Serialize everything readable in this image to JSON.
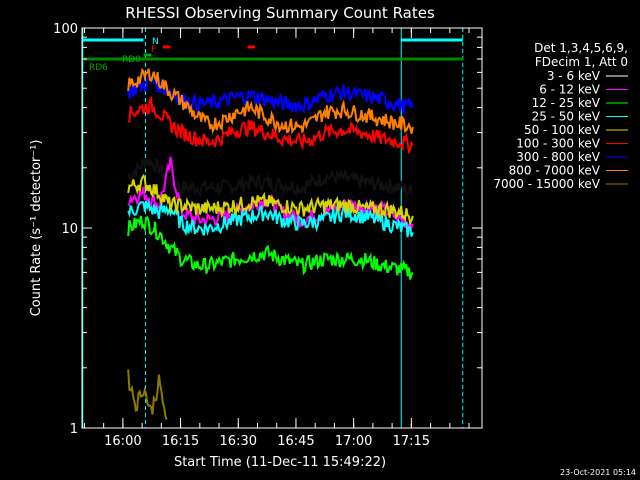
{
  "chart_data": {
    "type": "line",
    "title": "RHESSI Observing Summary Count Rates",
    "xlabel": "Start Time (11-Dec-11 15:49:22)",
    "ylabel": "Count Rate (s⁻¹ detector⁻¹)",
    "yscale": "log",
    "ylim": [
      1,
      100
    ],
    "xlim_minutes": [
      0,
      104
    ],
    "x_tick_labels": [
      "16:00",
      "16:15",
      "16:30",
      "16:45",
      "17:00",
      "17:15"
    ],
    "x_tick_minutes": [
      10.63,
      25.63,
      40.63,
      55.63,
      70.63,
      85.63
    ],
    "y_tick_labels": [
      "1",
      "10",
      "100"
    ],
    "y_ticks": [
      1,
      10,
      100
    ],
    "legend_header": [
      "Det 1,3,4,5,6,9,",
      "FDecim 1, Att 0"
    ],
    "timestamp": "23-Oct-2021 05:14",
    "flag_labels": {
      "n": "N",
      "f": "F",
      "rd0": "RD0",
      "rd6": "RD6"
    },
    "series": [
      {
        "name": "3 - 6 keV",
        "color": "#000000",
        "values": [
          [
            12,
            18
          ],
          [
            17,
            22
          ],
          [
            20,
            20
          ],
          [
            23,
            17
          ],
          [
            26,
            16
          ],
          [
            31,
            16
          ],
          [
            38,
            16
          ],
          [
            44,
            17
          ],
          [
            47,
            17
          ],
          [
            57,
            16
          ],
          [
            63,
            18
          ],
          [
            66,
            18
          ],
          [
            73,
            17
          ],
          [
            83,
            16
          ],
          [
            86,
            15
          ]
        ]
      },
      {
        "name": "6 - 12 keV",
        "color": "#ff00ff",
        "values": [
          [
            12,
            14
          ],
          [
            16,
            15
          ],
          [
            20,
            13
          ],
          [
            23,
            21
          ],
          [
            26,
            12
          ],
          [
            30,
            11
          ],
          [
            33,
            11
          ],
          [
            40,
            12
          ],
          [
            44,
            13
          ],
          [
            48,
            14
          ],
          [
            52,
            12
          ],
          [
            57,
            11
          ],
          [
            63,
            12
          ],
          [
            68,
            13
          ],
          [
            73,
            13
          ],
          [
            80,
            12
          ],
          [
            83,
            11
          ],
          [
            86,
            10.5
          ]
        ]
      },
      {
        "name": "12 - 25 keV",
        "color": "#00ff00",
        "values": [
          [
            12,
            10
          ],
          [
            16,
            11
          ],
          [
            20,
            9.5
          ],
          [
            23,
            8
          ],
          [
            26,
            7
          ],
          [
            30,
            6.5
          ],
          [
            33,
            6.5
          ],
          [
            40,
            7
          ],
          [
            44,
            7.3
          ],
          [
            48,
            7.5
          ],
          [
            52,
            7
          ],
          [
            57,
            6.5
          ],
          [
            63,
            7
          ],
          [
            70,
            7
          ],
          [
            73,
            7
          ],
          [
            78,
            6.5
          ],
          [
            83,
            6.2
          ],
          [
            86,
            6
          ]
        ]
      },
      {
        "name": "25 - 50 keV",
        "color": "#00ffff",
        "values": [
          [
            12,
            12
          ],
          [
            16,
            13
          ],
          [
            20,
            12
          ],
          [
            23,
            12.5
          ],
          [
            26,
            10.5
          ],
          [
            30,
            10
          ],
          [
            33,
            10
          ],
          [
            40,
            11
          ],
          [
            44,
            11.5
          ],
          [
            48,
            12
          ],
          [
            52,
            11
          ],
          [
            57,
            10.5
          ],
          [
            63,
            11
          ],
          [
            68,
            12
          ],
          [
            73,
            11.5
          ],
          [
            80,
            10.5
          ],
          [
            83,
            10
          ],
          [
            86,
            9.5
          ]
        ]
      },
      {
        "name": "50 - 100 keV",
        "color": "#d6d600",
        "values": [
          [
            12,
            16
          ],
          [
            16,
            17
          ],
          [
            20,
            15
          ],
          [
            23,
            13
          ],
          [
            26,
            13
          ],
          [
            30,
            12.5
          ],
          [
            33,
            12.5
          ],
          [
            40,
            13
          ],
          [
            44,
            13.5
          ],
          [
            48,
            13.5
          ],
          [
            52,
            13
          ],
          [
            57,
            12.5
          ],
          [
            63,
            13
          ],
          [
            70,
            13
          ],
          [
            73,
            12.5
          ],
          [
            78,
            12.5
          ],
          [
            83,
            12
          ],
          [
            86,
            11.5
          ]
        ]
      },
      {
        "name": "100 - 300 keV",
        "color": "#ff0000",
        "values": [
          [
            12,
            37
          ],
          [
            16,
            40
          ],
          [
            18,
            41
          ],
          [
            20,
            38
          ],
          [
            23,
            33
          ],
          [
            26,
            30
          ],
          [
            30,
            28
          ],
          [
            33,
            27
          ],
          [
            36,
            28
          ],
          [
            40,
            31
          ],
          [
            44,
            32
          ],
          [
            48,
            30
          ],
          [
            52,
            28
          ],
          [
            57,
            27
          ],
          [
            60,
            28
          ],
          [
            63,
            30
          ],
          [
            68,
            31
          ],
          [
            73,
            30
          ],
          [
            78,
            28
          ],
          [
            83,
            27
          ],
          [
            86,
            26
          ]
        ]
      },
      {
        "name": "300 - 800 keV",
        "color": "#0000ff",
        "values": [
          [
            12,
            48
          ],
          [
            16,
            52
          ],
          [
            18,
            55
          ],
          [
            20,
            52
          ],
          [
            23,
            48
          ],
          [
            26,
            44
          ],
          [
            30,
            42
          ],
          [
            33,
            42
          ],
          [
            36,
            43
          ],
          [
            40,
            45
          ],
          [
            44,
            46
          ],
          [
            48,
            44
          ],
          [
            52,
            42
          ],
          [
            57,
            41
          ],
          [
            60,
            43
          ],
          [
            63,
            46
          ],
          [
            68,
            48
          ],
          [
            73,
            46
          ],
          [
            78,
            44
          ],
          [
            83,
            41
          ],
          [
            86,
            40
          ]
        ]
      },
      {
        "name": "800 - 7000 keV",
        "color": "#ff8000",
        "values": [
          [
            12,
            52
          ],
          [
            16,
            57
          ],
          [
            18,
            60
          ],
          [
            20,
            55
          ],
          [
            23,
            48
          ],
          [
            26,
            43
          ],
          [
            30,
            36
          ],
          [
            33,
            33
          ],
          [
            36,
            34
          ],
          [
            40,
            38
          ],
          [
            44,
            40
          ],
          [
            48,
            36
          ],
          [
            52,
            33
          ],
          [
            57,
            32
          ],
          [
            60,
            34
          ],
          [
            63,
            38
          ],
          [
            68,
            39
          ],
          [
            73,
            37
          ],
          [
            78,
            35
          ],
          [
            83,
            33
          ],
          [
            86,
            32
          ]
        ]
      },
      {
        "name": "7000 - 15000 keV",
        "color": "#8b7a00",
        "values": [
          [
            12,
            1.8
          ],
          [
            14,
            1.3
          ],
          [
            16,
            1.6
          ],
          [
            18,
            1.2
          ],
          [
            20,
            1.7
          ],
          [
            22,
            1.1
          ]
        ]
      }
    ]
  }
}
